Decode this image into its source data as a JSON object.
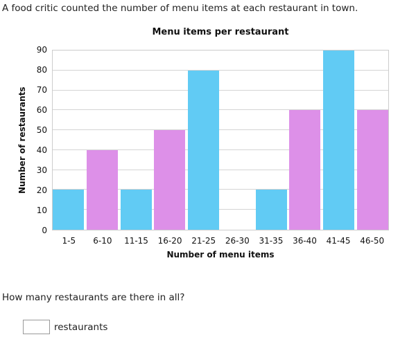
{
  "prompt": "A food critic counted the number of menu items at each restaurant in town.",
  "question": "How many restaurants are there in all?",
  "answer": {
    "value": "",
    "unit_label": "restaurants"
  },
  "colors": {
    "bar_blue": "#61cbf4",
    "bar_purple": "#dd90e8",
    "gridline": "#d4d4d4",
    "plot_border": "#cccccc",
    "text": "#212121"
  },
  "chart_data": {
    "type": "bar",
    "title": "Menu items per restaurant",
    "xlabel": "Number of menu items",
    "ylabel": "Number of restaurants",
    "categories": [
      "1-5",
      "6-10",
      "11-15",
      "16-20",
      "21-25",
      "26-30",
      "31-35",
      "36-40",
      "41-45",
      "46-50"
    ],
    "values": [
      20,
      40,
      20,
      50,
      80,
      0,
      20,
      60,
      90,
      60
    ],
    "bar_colors": [
      "#61cbf4",
      "#dd90e8",
      "#61cbf4",
      "#dd90e8",
      "#61cbf4",
      "#dd90e8",
      "#61cbf4",
      "#dd90e8",
      "#61cbf4",
      "#dd90e8"
    ],
    "ylim": [
      0,
      90
    ],
    "ytick_step": 10,
    "grid": true,
    "legend": false
  }
}
